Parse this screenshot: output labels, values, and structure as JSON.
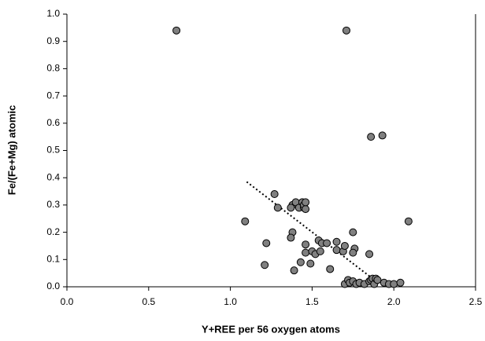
{
  "chart_data": {
    "type": "scatter",
    "xlabel": "Y+REE per 56 oxygen atoms",
    "ylabel": "Fe/(Fe+Mg) atomic",
    "xlim": [
      0,
      2.5
    ],
    "ylim": [
      0,
      1
    ],
    "xticks": [
      {
        "value": 0,
        "label": "0.0"
      },
      {
        "value": 0.5,
        "label": "0.5"
      },
      {
        "value": 1,
        "label": "1.0"
      },
      {
        "value": 1.5,
        "label": "1.5"
      },
      {
        "value": 2,
        "label": "2.0"
      },
      {
        "value": 2.5,
        "label": "2.5"
      }
    ],
    "yticks": [
      {
        "value": 0,
        "label": "0.0"
      },
      {
        "value": 0.1,
        "label": "0.1"
      },
      {
        "value": 0.2,
        "label": "0.2"
      },
      {
        "value": 0.3,
        "label": "0.3"
      },
      {
        "value": 0.4,
        "label": "0.4"
      },
      {
        "value": 0.5,
        "label": "0.5"
      },
      {
        "value": 0.6,
        "label": "0.6"
      },
      {
        "value": 0.7,
        "label": "0.7"
      },
      {
        "value": 0.8,
        "label": "0.8"
      },
      {
        "value": 0.9,
        "label": "0.9"
      },
      {
        "value": 1,
        "label": "1.0"
      }
    ],
    "color": "#808080",
    "x": [
      0.67,
      1.71,
      1.86,
      1.93,
      2.09,
      1.09,
      1.27,
      1.29,
      1.38,
      1.37,
      1.4,
      1.42,
      1.44,
      1.45,
      1.45,
      1.46,
      1.46,
      1.22,
      1.21,
      1.38,
      1.37,
      1.39,
      1.43,
      1.46,
      1.46,
      1.49,
      1.5,
      1.52,
      1.54,
      1.55,
      1.56,
      1.59,
      1.61,
      1.65,
      1.65,
      1.69,
      1.7,
      1.75,
      1.76,
      1.75,
      1.85,
      1.7,
      1.72,
      1.73,
      1.75,
      1.77,
      1.79,
      1.82,
      1.85,
      1.86,
      1.87,
      1.88,
      1.89,
      1.9,
      1.94,
      1.97,
      2.0,
      2.04
    ],
    "values": [
      0.94,
      0.94,
      0.55,
      0.555,
      0.24,
      0.24,
      0.34,
      0.29,
      0.3,
      0.29,
      0.31,
      0.29,
      0.31,
      0.29,
      0.3,
      0.285,
      0.31,
      0.16,
      0.08,
      0.2,
      0.18,
      0.06,
      0.09,
      0.155,
      0.125,
      0.085,
      0.13,
      0.12,
      0.17,
      0.13,
      0.16,
      0.16,
      0.065,
      0.135,
      0.165,
      0.13,
      0.15,
      0.2,
      0.14,
      0.125,
      0.12,
      0.01,
      0.025,
      0.015,
      0.02,
      0.01,
      0.015,
      0.01,
      0.02,
      0.025,
      0.03,
      0.01,
      0.03,
      0.025,
      0.015,
      0.01,
      0.01,
      0.015
    ],
    "trendline": {
      "x": [
        1.1,
        1.87
      ],
      "y": [
        0.385,
        0.03
      ]
    }
  }
}
